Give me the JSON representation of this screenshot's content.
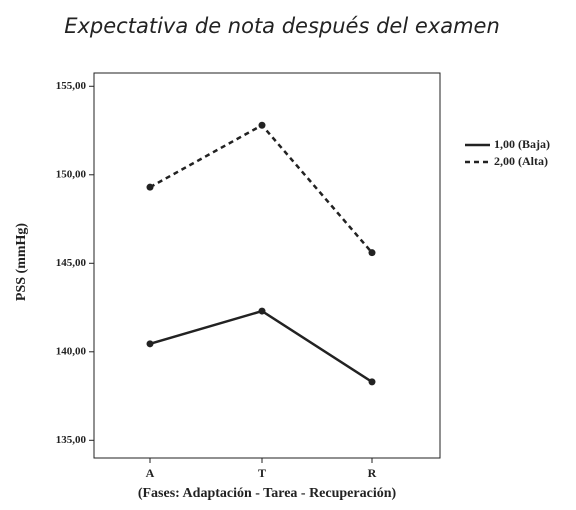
{
  "chart_data": {
    "type": "line",
    "title": "Expectativa de nota después del examen",
    "x_label": "(Fases: Adaptación - Tarea - Recuperación)",
    "y_label": "PSS (mmHg)",
    "categories": [
      "A",
      "T",
      "R"
    ],
    "series": [
      {
        "name": "1,00 (Baja)",
        "color": "#222222",
        "dash": "solid",
        "values": [
          140.45,
          142.3,
          138.3
        ]
      },
      {
        "name": "2,00 (Alta)",
        "color": "#222222",
        "dash": "dashed",
        "values": [
          149.3,
          152.8,
          145.6
        ]
      }
    ],
    "ylim": [
      134,
      155.75
    ],
    "yticks": [
      {
        "value": 135,
        "label": "135,00"
      },
      {
        "value": 140,
        "label": "140,00"
      },
      {
        "value": 145,
        "label": "145,00"
      },
      {
        "value": 150,
        "label": "150,00"
      },
      {
        "value": 155,
        "label": "155,00"
      }
    ],
    "legend": "right"
  }
}
